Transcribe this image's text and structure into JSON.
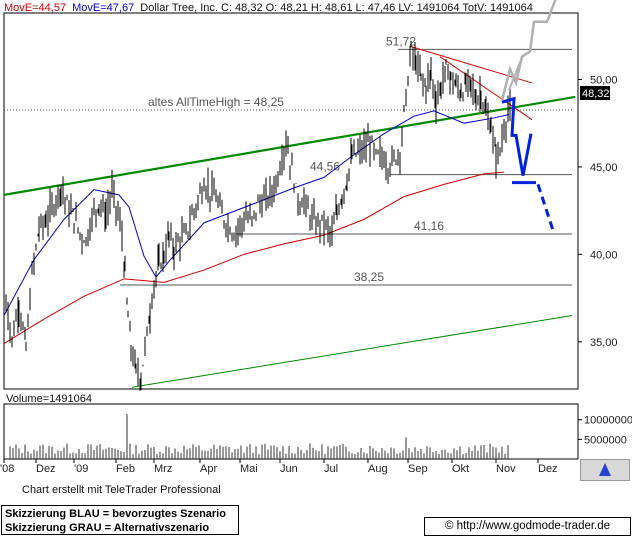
{
  "header": {
    "ma_short": "MovE=44,57",
    "ma_long": "MovE=47,67",
    "ohlc_text": "Dollar Tree, Inc. C: 48,32 O: 48,21 H: 48,61 L: 47,46 LV: 1491064 TotV: 1491064",
    "colors": {
      "ma_short": "#cc0000",
      "ma_long": "#0000cc"
    }
  },
  "chart_data": {
    "type": "line",
    "subtype": "ohlc-bars",
    "title": "Dollar Tree, Inc.",
    "ylim": [
      32.3,
      53.8
    ],
    "y_ticks": [
      "50,00",
      "45,00",
      "40,00",
      "35,00"
    ],
    "y_tick_values": [
      50,
      45,
      40,
      35
    ],
    "x_ticks": [
      "'08",
      "Dez",
      "'09",
      "Feb",
      "Mrz",
      "Apr",
      "Mai",
      "Jun",
      "Jul",
      "Aug",
      "Sep",
      "Okt",
      "Nov",
      "Dez"
    ],
    "last_price_label": "48,32",
    "last_price": 48.32,
    "grid": false,
    "series": [
      {
        "name": "MovE=44,57",
        "color": "#cc0000",
        "points": [
          [
            0,
            34.9
          ],
          [
            40,
            36.3
          ],
          [
            80,
            37.6
          ],
          [
            120,
            38.6
          ],
          [
            160,
            38.4
          ],
          [
            200,
            39.1
          ],
          [
            240,
            40.0
          ],
          [
            280,
            40.6
          ],
          [
            320,
            41.1
          ],
          [
            360,
            42.0
          ],
          [
            400,
            43.3
          ],
          [
            440,
            44.0
          ],
          [
            480,
            44.6
          ],
          [
            500,
            44.7
          ]
        ]
      },
      {
        "name": "MovE=47,67",
        "color": "#0000cc",
        "points": [
          [
            0,
            36.5
          ],
          [
            30,
            39.7
          ],
          [
            60,
            42.0
          ],
          [
            90,
            43.7
          ],
          [
            115,
            43.4
          ],
          [
            125,
            42.7
          ],
          [
            140,
            39.9
          ],
          [
            152,
            38.7
          ],
          [
            165,
            39.6
          ],
          [
            200,
            41.8
          ],
          [
            250,
            42.9
          ],
          [
            290,
            43.8
          ],
          [
            320,
            44.4
          ],
          [
            350,
            45.7
          ],
          [
            380,
            46.9
          ],
          [
            410,
            47.9
          ],
          [
            430,
            48.2
          ],
          [
            460,
            47.5
          ],
          [
            490,
            47.8
          ],
          [
            505,
            48.0
          ]
        ]
      },
      {
        "name": "price",
        "color": "#000000",
        "points": [
          [
            0,
            38.2
          ],
          [
            8,
            35.1
          ],
          [
            15,
            37.2
          ],
          [
            22,
            34.6
          ],
          [
            28,
            38.8
          ],
          [
            35,
            41.5
          ],
          [
            42,
            41.9
          ],
          [
            50,
            42.9
          ],
          [
            57,
            43.9
          ],
          [
            63,
            42.8
          ],
          [
            70,
            42.1
          ],
          [
            76,
            41.2
          ],
          [
            82,
            40.8
          ],
          [
            88,
            42.1
          ],
          [
            95,
            43.0
          ],
          [
            102,
            42.2
          ],
          [
            108,
            43.6
          ],
          [
            114,
            42.3
          ],
          [
            118,
            41.0
          ],
          [
            121,
            38.8
          ],
          [
            124,
            36.4
          ],
          [
            127,
            34.7
          ],
          [
            132,
            33.3
          ],
          [
            137,
            33.0
          ],
          [
            141,
            34.6
          ],
          [
            146,
            36.7
          ],
          [
            150,
            38.4
          ],
          [
            155,
            39.4
          ],
          [
            160,
            40.0
          ],
          [
            165,
            41.1
          ],
          [
            170,
            40.3
          ],
          [
            176,
            40.9
          ],
          [
            182,
            41.1
          ],
          [
            188,
            42.2
          ],
          [
            194,
            43.1
          ],
          [
            200,
            44.1
          ],
          [
            206,
            43.6
          ],
          [
            212,
            43.2
          ],
          [
            218,
            42.2
          ],
          [
            224,
            41.7
          ],
          [
            230,
            41.2
          ],
          [
            236,
            41.7
          ],
          [
            242,
            42.1
          ],
          [
            248,
            41.9
          ],
          [
            254,
            42.9
          ],
          [
            260,
            43.0
          ],
          [
            266,
            43.4
          ],
          [
            272,
            44.1
          ],
          [
            278,
            45.6
          ],
          [
            282,
            46.5
          ],
          [
            288,
            44.8
          ],
          [
            294,
            43.1
          ],
          [
            300,
            43.0
          ],
          [
            306,
            42.2
          ],
          [
            312,
            41.7
          ],
          [
            318,
            41.9
          ],
          [
            324,
            41.4
          ],
          [
            328,
            41.1
          ],
          [
            333,
            42.4
          ],
          [
            338,
            43.4
          ],
          [
            343,
            44.3
          ],
          [
            348,
            45.6
          ],
          [
            354,
            45.8
          ],
          [
            360,
            46.0
          ],
          [
            366,
            46.4
          ],
          [
            372,
            45.6
          ],
          [
            378,
            45.6
          ],
          [
            384,
            45.1
          ],
          [
            390,
            45.4
          ],
          [
            396,
            46.0
          ],
          [
            402,
            49.0
          ],
          [
            407,
            51.7
          ],
          [
            412,
            50.9
          ],
          [
            417,
            50.1
          ],
          [
            422,
            49.6
          ],
          [
            427,
            50.4
          ],
          [
            432,
            48.8
          ],
          [
            437,
            49.6
          ],
          [
            442,
            50.6
          ],
          [
            447,
            50.1
          ],
          [
            452,
            49.6
          ],
          [
            457,
            49.3
          ],
          [
            462,
            49.6
          ],
          [
            467,
            49.8
          ],
          [
            472,
            48.8
          ],
          [
            477,
            49.3
          ],
          [
            482,
            47.9
          ],
          [
            487,
            47.3
          ],
          [
            492,
            45.6
          ],
          [
            496,
            45.9
          ],
          [
            500,
            47.2
          ],
          [
            504,
            48.2
          ],
          [
            508,
            48.3
          ]
        ]
      }
    ],
    "levels": [
      {
        "label": "51,72",
        "value": 51.72
      },
      {
        "label": "altes AllTimeHigh  =  48,25",
        "value": 48.25
      },
      {
        "label": "44,56",
        "value": 44.56
      },
      {
        "label": "41,16",
        "value": 41.16
      },
      {
        "label": "38,25",
        "value": 38.25
      }
    ],
    "volume": {
      "label": "Volume=1491064",
      "y_ticks": [
        "10000000",
        "5000000"
      ],
      "y_tick_values": [
        10000000,
        5000000
      ],
      "ylim": [
        0,
        14000000
      ]
    },
    "scenarios": [
      {
        "name": "bevorzugtes Szenario",
        "color": "#0022dd",
        "style": "thick"
      },
      {
        "name": "Alternativszenario",
        "color": "#b0b0b0",
        "style": "thick"
      }
    ],
    "trend_colors": {
      "upper_trend": "#008800",
      "lower_trend": "#008800",
      "resistance": "#dd0000"
    }
  },
  "footer": {
    "credit": "Chart erstellt mit TeleTrader Professional",
    "legend_blue": "Skizzierung BLAU = bevorzugtes Szenario",
    "legend_grey": "Skizzierung GRAU = Alternativszenario",
    "url": "© http://www.godmode-trader.de"
  }
}
